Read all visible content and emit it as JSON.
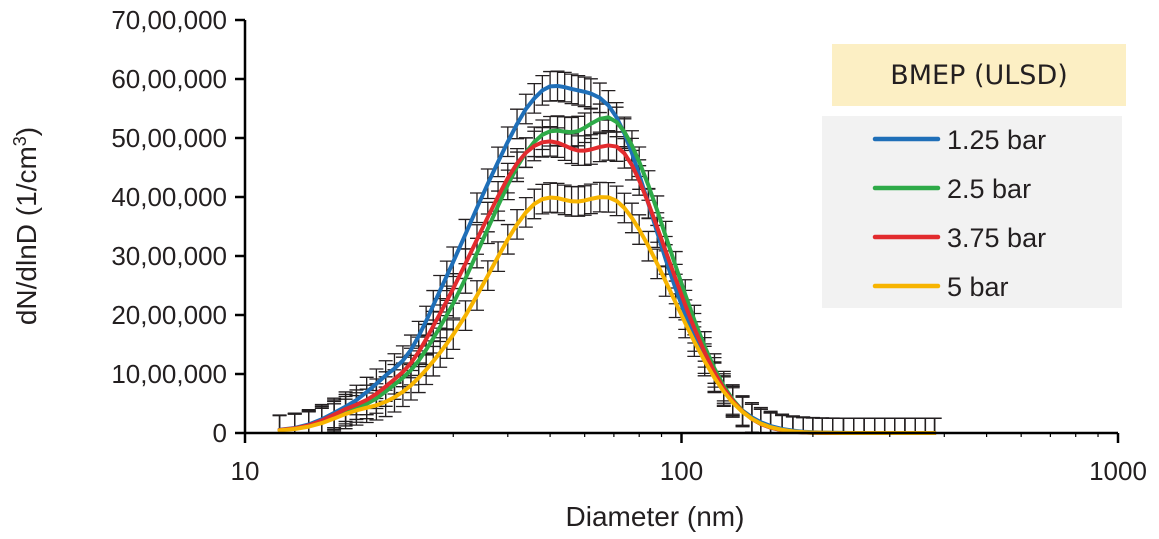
{
  "chart_data": {
    "type": "line",
    "x_scale": "log",
    "xlabel": "Diameter (nm)",
    "ylabel_main": "dN/dlnD (1/cm",
    "ylabel_sup": "3",
    "ylabel_close": ")",
    "xlim": [
      10,
      1000
    ],
    "ylim": [
      0,
      7000000
    ],
    "x_ticks": [
      {
        "value": 10,
        "label": "10"
      },
      {
        "value": 100,
        "label": "100"
      },
      {
        "value": 1000,
        "label": "1000"
      }
    ],
    "y_ticks": [
      {
        "value": 0,
        "label": "0"
      },
      {
        "value": 1000000,
        "label": "10,00,000"
      },
      {
        "value": 2000000,
        "label": "20,00,000"
      },
      {
        "value": 3000000,
        "label": "30,00,000"
      },
      {
        "value": 4000000,
        "label": "40,00,000"
      },
      {
        "value": 5000000,
        "label": "50,00,000"
      },
      {
        "value": 6000000,
        "label": "60,00,000"
      },
      {
        "value": 7000000,
        "label": "70,00,000"
      }
    ],
    "legend_title": "BMEP (ULSD)",
    "legend_position": "top-right",
    "error_bars": true,
    "x": [
      12,
      13,
      14,
      15,
      16,
      17,
      18,
      19,
      20,
      21,
      22,
      23,
      24,
      25,
      26,
      27,
      28,
      29,
      30,
      32,
      34,
      36,
      38,
      40,
      42,
      44,
      46,
      48,
      50,
      52,
      54,
      56,
      58,
      60,
      62,
      65,
      68,
      71,
      74,
      77,
      80,
      84,
      88,
      92,
      97,
      102,
      107,
      113,
      119,
      125,
      131,
      138,
      145,
      152,
      160,
      170,
      180,
      190,
      200,
      210,
      222,
      235,
      248,
      262,
      277,
      292,
      308,
      325,
      343,
      362,
      380
    ],
    "series": [
      {
        "name": "1.25 bar",
        "color": "#1f6fb8",
        "values": [
          55000,
          86000,
          145000,
          233000,
          340000,
          446000,
          559000,
          694000,
          835000,
          975000,
          1093000,
          1227000,
          1410000,
          1642000,
          1898000,
          2164000,
          2420000,
          2663000,
          2903000,
          3370000,
          3818000,
          4225000,
          4595000,
          4936000,
          5238000,
          5492000,
          5672000,
          5807000,
          5876000,
          5882000,
          5862000,
          5832000,
          5807000,
          5782000,
          5753000,
          5681000,
          5553000,
          5350000,
          5075000,
          4744000,
          4380000,
          3884000,
          3396000,
          2942000,
          2441000,
          2006000,
          1635000,
          1260000,
          956000,
          720000,
          538000,
          380000,
          265000,
          182000,
          118000,
          69000,
          40000,
          22000,
          12000,
          6500,
          3200,
          1500,
          700,
          300,
          130,
          60,
          30,
          15,
          8,
          4,
          2
        ],
        "errors": [
          250000,
          250000,
          250000,
          250000,
          250000,
          250000,
          250000,
          250000,
          250000,
          250000,
          250000,
          250000,
          250000,
          250000,
          250000,
          250000,
          250000,
          250000,
          250000,
          250000,
          250000,
          250000,
          250000,
          250000,
          250000,
          250000,
          250000,
          250000,
          250000,
          250000,
          250000,
          250000,
          250000,
          250000,
          250000,
          250000,
          250000,
          250000,
          250000,
          250000,
          250000,
          250000,
          250000,
          250000,
          250000,
          250000,
          250000,
          250000,
          250000,
          250000,
          250000,
          250000,
          250000,
          250000,
          250000,
          250000,
          250000,
          250000,
          250000,
          250000,
          250000,
          250000,
          250000,
          250000,
          250000,
          250000,
          250000,
          250000,
          250000,
          250000,
          250000
        ]
      },
      {
        "name": "2.5 bar",
        "color": "#2eaa48",
        "values": [
          48000,
          73000,
          119000,
          192000,
          285000,
          370000,
          432000,
          493000,
          585000,
          702000,
          821000,
          935000,
          1066000,
          1226000,
          1411000,
          1606000,
          1801000,
          1998000,
          2198000,
          2620000,
          3050000,
          3462000,
          3851000,
          4205000,
          4512000,
          4753000,
          4935000,
          5055000,
          5114000,
          5125000,
          5108000,
          5098000,
          5118000,
          5174000,
          5241000,
          5325000,
          5349000,
          5272000,
          5104000,
          4873000,
          4597000,
          4195000,
          3768000,
          3337000,
          2825000,
          2347000,
          1914000,
          1467000,
          1092000,
          795000,
          568000,
          374000,
          240000,
          153000,
          90000,
          46000,
          23000,
          11000,
          5000,
          2200,
          900,
          350,
          140,
          55,
          20,
          8,
          3,
          1,
          0,
          0,
          0
        ],
        "errors": [
          250000,
          250000,
          250000,
          250000,
          250000,
          250000,
          250000,
          250000,
          250000,
          250000,
          250000,
          250000,
          250000,
          250000,
          250000,
          250000,
          250000,
          250000,
          250000,
          250000,
          250000,
          250000,
          250000,
          250000,
          250000,
          250000,
          250000,
          250000,
          250000,
          250000,
          250000,
          250000,
          250000,
          250000,
          250000,
          250000,
          250000,
          250000,
          250000,
          250000,
          250000,
          250000,
          250000,
          250000,
          250000,
          250000,
          250000,
          250000,
          250000,
          250000,
          250000,
          250000,
          250000,
          250000,
          250000,
          250000,
          250000,
          250000,
          250000,
          250000,
          250000,
          250000,
          250000,
          250000,
          250000,
          250000,
          250000,
          250000,
          250000,
          250000,
          250000
        ]
      },
      {
        "name": "3.75 bar",
        "color": "#e22b2e",
        "values": [
          50000,
          78000,
          130000,
          210000,
          310000,
          405000,
          480000,
          560000,
          665000,
          787000,
          911000,
          1035000,
          1186000,
          1375000,
          1590000,
          1812000,
          2028000,
          2240000,
          2450000,
          2870000,
          3280000,
          3660000,
          4010000,
          4320000,
          4570000,
          4750000,
          4865000,
          4927000,
          4943000,
          4921000,
          4871000,
          4818000,
          4786000,
          4786000,
          4805000,
          4849000,
          4874000,
          4855000,
          4739000,
          4539000,
          4281000,
          3894000,
          3483000,
          3081000,
          2608000,
          2168000,
          1775000,
          1367000,
          1027000,
          754000,
          545000,
          365000,
          238000,
          152000,
          90000,
          46000,
          22000,
          10000,
          4500,
          1900,
          720,
          260,
          90,
          30,
          10,
          3,
          1,
          0,
          0,
          0,
          0
        ],
        "errors": [
          250000,
          250000,
          250000,
          250000,
          250000,
          250000,
          250000,
          250000,
          250000,
          250000,
          250000,
          250000,
          250000,
          250000,
          250000,
          250000,
          250000,
          250000,
          250000,
          250000,
          250000,
          250000,
          250000,
          250000,
          250000,
          250000,
          250000,
          250000,
          250000,
          250000,
          250000,
          250000,
          250000,
          250000,
          250000,
          250000,
          250000,
          250000,
          250000,
          250000,
          250000,
          250000,
          250000,
          250000,
          250000,
          250000,
          250000,
          250000,
          250000,
          250000,
          250000,
          250000,
          250000,
          250000,
          250000,
          250000,
          250000,
          250000,
          250000,
          250000,
          250000,
          250000,
          250000,
          250000,
          250000,
          250000,
          250000,
          250000,
          250000,
          250000,
          250000
        ]
      },
      {
        "name": "5 bar",
        "color": "#f7b400",
        "values": [
          45000,
          68000,
          108000,
          168000,
          245000,
          323000,
          384000,
          428000,
          470000,
          529000,
          606000,
          699000,
          809000,
          935000,
          1072000,
          1217000,
          1365000,
          1515000,
          1668000,
          1990000,
          2330000,
          2667000,
          2989000,
          3283000,
          3536000,
          3739000,
          3882000,
          3964000,
          3991000,
          3981000,
          3951000,
          3927000,
          3924000,
          3941000,
          3968000,
          3998000,
          3994000,
          3934000,
          3813000,
          3645000,
          3448000,
          3166000,
          2867000,
          2568000,
          2208000,
          1864000,
          1549000,
          1219000,
          934000,
          701000,
          517000,
          356000,
          239000,
          159000,
          98000,
          53000,
          28000,
          14000,
          6800,
          3200,
          1400,
          550,
          210,
          75,
          25,
          8,
          2,
          1,
          0,
          0,
          0
        ],
        "errors": [
          250000,
          250000,
          250000,
          250000,
          250000,
          250000,
          250000,
          250000,
          250000,
          250000,
          250000,
          250000,
          250000,
          250000,
          250000,
          250000,
          250000,
          250000,
          250000,
          250000,
          250000,
          250000,
          250000,
          250000,
          250000,
          250000,
          250000,
          250000,
          250000,
          250000,
          250000,
          250000,
          250000,
          250000,
          250000,
          250000,
          250000,
          250000,
          250000,
          250000,
          250000,
          250000,
          250000,
          250000,
          250000,
          250000,
          250000,
          250000,
          250000,
          250000,
          250000,
          250000,
          250000,
          250000,
          250000,
          250000,
          250000,
          250000,
          250000,
          250000,
          250000,
          250000,
          250000,
          250000,
          250000,
          250000,
          250000,
          250000,
          250000,
          250000,
          250000
        ]
      }
    ],
    "legend_box_color": "#f2f2f2",
    "legend_title_color": "#fcefc4",
    "axis_color": "#000000"
  }
}
